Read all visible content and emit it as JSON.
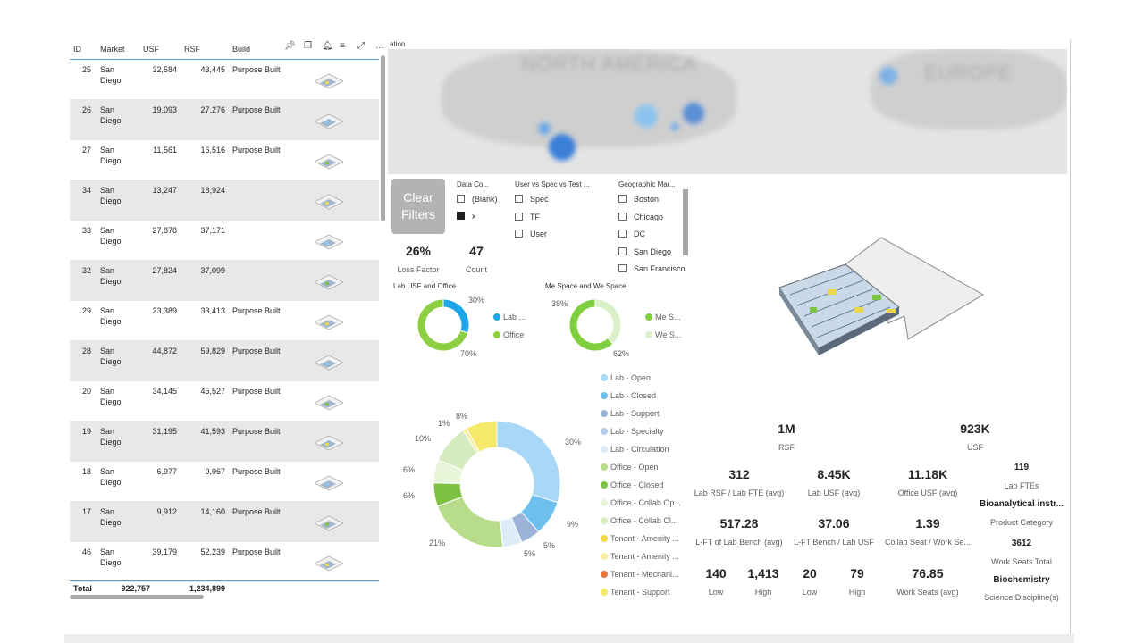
{
  "table": {
    "headers": {
      "id": "ID",
      "market": "Market",
      "usf": "USF",
      "rsf": "RSF",
      "build": "Build"
    },
    "rows": [
      {
        "id": "25",
        "market": "San Diego",
        "usf": "32,584",
        "rsf": "43,445",
        "build": "Purpose Built"
      },
      {
        "id": "26",
        "market": "San Diego",
        "usf": "19,093",
        "rsf": "27,276",
        "build": "Purpose Built"
      },
      {
        "id": "27",
        "market": "San Diego",
        "usf": "11,561",
        "rsf": "16,516",
        "build": "Purpose Built"
      },
      {
        "id": "34",
        "market": "San Diego",
        "usf": "13,247",
        "rsf": "18,924",
        "build": ""
      },
      {
        "id": "33",
        "market": "San Diego",
        "usf": "27,878",
        "rsf": "37,171",
        "build": ""
      },
      {
        "id": "32",
        "market": "San Diego",
        "usf": "27,824",
        "rsf": "37,099",
        "build": ""
      },
      {
        "id": "29",
        "market": "San Diego",
        "usf": "23,389",
        "rsf": "33,413",
        "build": "Purpose Built"
      },
      {
        "id": "28",
        "market": "San Diego",
        "usf": "44,872",
        "rsf": "59,829",
        "build": "Purpose Built"
      },
      {
        "id": "20",
        "market": "San Diego",
        "usf": "34,145",
        "rsf": "45,527",
        "build": "Purpose Built"
      },
      {
        "id": "19",
        "market": "San Diego",
        "usf": "31,195",
        "rsf": "41,593",
        "build": "Purpose Built"
      },
      {
        "id": "18",
        "market": "San Diego",
        "usf": "6,977",
        "rsf": "9,967",
        "build": "Purpose Built"
      },
      {
        "id": "17",
        "market": "San Diego",
        "usf": "9,912",
        "rsf": "14,160",
        "build": "Purpose Built"
      },
      {
        "id": "46",
        "market": "San Diego",
        "usf": "39,179",
        "rsf": "52,239",
        "build": "Purpose Built"
      }
    ],
    "total": {
      "label": "Total",
      "usf": "922,757",
      "rsf": "1,234,899"
    },
    "toolbar_icons": [
      "pin-icon",
      "copy-icon",
      "bell-icon",
      "filter-icon",
      "focus-icon",
      "more-icon"
    ]
  },
  "map": {
    "title": "ation",
    "labels": {
      "na": "NORTH AMERICA",
      "eu": "EUROPE"
    },
    "bubble_color": "#4a90e2"
  },
  "slicers": {
    "clear_button": "Clear Filters",
    "data_co": {
      "title": "Data Co...",
      "items": [
        {
          "label": "(Blank)",
          "checked": false
        },
        {
          "label": "x",
          "checked": true
        }
      ]
    },
    "user_vs_spec": {
      "title": "User vs Spec vs Test ...",
      "items": [
        {
          "label": "Spec",
          "checked": false
        },
        {
          "label": "TF",
          "checked": false
        },
        {
          "label": "User",
          "checked": false
        }
      ]
    },
    "geo": {
      "title": "Geographic Mar...",
      "items": [
        {
          "label": "Boston",
          "checked": false
        },
        {
          "label": "Chicago",
          "checked": false
        },
        {
          "label": "DC",
          "checked": false
        },
        {
          "label": "San Diego",
          "checked": false
        },
        {
          "label": "San Francisco",
          "checked": false
        }
      ]
    }
  },
  "kpis_left": [
    {
      "value": "26%",
      "label": "Loss Factor"
    },
    {
      "value": "47",
      "label": "Count"
    }
  ],
  "donut1": {
    "title": "Lab USF and Office",
    "segments": [
      {
        "name": "Lab ...",
        "value": 30,
        "color": "#1ea7e8"
      },
      {
        "name": "Office",
        "value": 70,
        "color": "#8cd042"
      }
    ],
    "labels": [
      "30%",
      "70%"
    ]
  },
  "donut2": {
    "title": "Me Space and We Space",
    "segments": [
      {
        "name": "Me S...",
        "value": 62,
        "color": "#7fcf3f"
      },
      {
        "name": "We S...",
        "value": 38,
        "color": "#d9f0c8"
      }
    ],
    "labels": [
      "38%",
      "62%"
    ]
  },
  "donut3": {
    "segments": [
      {
        "value": 30,
        "color": "#a8d8f5",
        "label": "30%"
      },
      {
        "value": 9,
        "color": "#6ec1ef",
        "label": "9%"
      },
      {
        "value": 5,
        "color": "#9ab3d6",
        "label": "5%"
      },
      {
        "value": 5,
        "color": "#dcecf8",
        "label": "5%"
      },
      {
        "value": 21,
        "color": "#b7dc8a",
        "label": "21%"
      },
      {
        "value": 6,
        "color": "#7dc242",
        "label": "6%"
      },
      {
        "value": 6,
        "color": "#e8f5d8",
        "label": "6%"
      },
      {
        "value": 10,
        "color": "#d6ecc0",
        "label": "10%"
      },
      {
        "value": 1,
        "color": "#f7eea0",
        "label": "1%"
      },
      {
        "value": 8,
        "color": "#f5e86a",
        "label": "8%"
      }
    ],
    "legend": [
      {
        "name": "Lab - Open",
        "color": "#a8d8f5"
      },
      {
        "name": "Lab - Closed",
        "color": "#6ec1ef"
      },
      {
        "name": "Lab - Support",
        "color": "#9ab3d6"
      },
      {
        "name": "Lab - Specialty",
        "color": "#b8cde8"
      },
      {
        "name": "Lab - Circulation",
        "color": "#dcecf8"
      },
      {
        "name": "Office - Open",
        "color": "#b7dc8a"
      },
      {
        "name": "Office - Closed",
        "color": "#7dc242"
      },
      {
        "name": "Office - Collab Op...",
        "color": "#e8f5d8"
      },
      {
        "name": "Office - Collab Cl...",
        "color": "#d6ecc0"
      },
      {
        "name": "Tenant - Amenity ...",
        "color": "#f5d54a"
      },
      {
        "name": "Tenant - Amenity ...",
        "color": "#f7eea0"
      },
      {
        "name": "Tenant - Mechani...",
        "color": "#e8743b"
      },
      {
        "name": "Tenant - Support",
        "color": "#f5e86a"
      }
    ]
  },
  "right_kpis": {
    "rsf": {
      "value": "1M",
      "label": "RSF"
    },
    "usf": {
      "value": "923K",
      "label": "USF"
    },
    "lab_rsf_fte": {
      "value": "312",
      "label": "Lab RSF / Lab FTE (avg)"
    },
    "lab_usf": {
      "value": "8.45K",
      "label": "Lab USF (avg)"
    },
    "office_usf": {
      "value": "11.18K",
      "label": "Office USF (avg)"
    },
    "lab_ftes": {
      "value": "119",
      "label": "Lab FTEs"
    },
    "product_cat": {
      "value": "Bioanalytical instr...",
      "label": "Product Category"
    },
    "lft_bench": {
      "value": "517.28",
      "label": "L-FT of Lab Bench (avg)"
    },
    "lft_usf": {
      "value": "37.06",
      "label": "L-FT Bench / Lab USF"
    },
    "collab": {
      "value": "1.39",
      "label": "Collab Seat / Work Se..."
    },
    "work_seats_total": {
      "value": "3612",
      "label": "Work Seats Total"
    },
    "low1": {
      "value": "140",
      "label": "Low"
    },
    "high1": {
      "value": "1,413",
      "label": "High"
    },
    "low2": {
      "value": "20",
      "label": "Low"
    },
    "high2": {
      "value": "79",
      "label": "High"
    },
    "work_seats_avg": {
      "value": "76.85",
      "label": "Work Seats (avg)"
    },
    "science": {
      "value": "Biochemistry",
      "label": "Science Discipline(s)"
    }
  }
}
